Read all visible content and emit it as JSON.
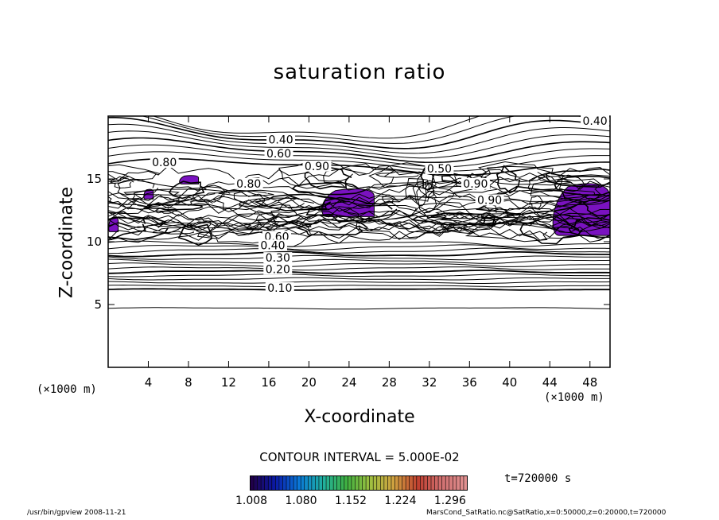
{
  "chart_data": {
    "type": "heatmap",
    "title": "saturation ratio",
    "xlabel": "X-coordinate",
    "ylabel": "Z-coordinate",
    "x_unit_label": "(×1000 m)",
    "y_unit_label": "(×1000 m)",
    "xlim": [
      0,
      50
    ],
    "ylim": [
      0,
      20
    ],
    "x_ticks": [
      4,
      8,
      12,
      16,
      20,
      24,
      28,
      32,
      36,
      40,
      44,
      48
    ],
    "y_ticks": [
      5,
      10,
      15
    ],
    "contour_interval_text": "CONTOUR INTERVAL = 5.000E-02",
    "time_text": "t=720000 s",
    "colorbar_ticks": [
      "1.008",
      "1.080",
      "1.152",
      "1.224",
      "1.296"
    ],
    "colorbar_colors": [
      "#20004a",
      "#0a1aa8",
      "#0a7ad8",
      "#20b0a0",
      "#40b040",
      "#a0c040",
      "#d0a040",
      "#c04030",
      "#d07070",
      "#e09090"
    ],
    "shaded_region_color": "#7a12c0",
    "contour_labels": [
      {
        "text": "0.40",
        "x": 48.5,
        "z": 19.5
      },
      {
        "text": "0.40",
        "x": 17.2,
        "z": 18.0
      },
      {
        "text": "0.60",
        "x": 17.0,
        "z": 16.9
      },
      {
        "text": "0.80",
        "x": 5.6,
        "z": 16.2
      },
      {
        "text": "0.90",
        "x": 20.8,
        "z": 15.9
      },
      {
        "text": "0.50",
        "x": 33.0,
        "z": 15.7
      },
      {
        "text": "0.90",
        "x": 36.6,
        "z": 14.5
      },
      {
        "text": "0.90",
        "x": 38.0,
        "z": 13.2
      },
      {
        "text": "0.80",
        "x": 14.0,
        "z": 14.5
      },
      {
        "text": "0.60",
        "x": 16.8,
        "z": 10.3
      },
      {
        "text": "0.40",
        "x": 16.4,
        "z": 9.6
      },
      {
        "text": "0.30",
        "x": 16.9,
        "z": 8.6
      },
      {
        "text": "0.20",
        "x": 16.9,
        "z": 7.7
      },
      {
        "text": "0.10",
        "x": 17.1,
        "z": 6.2
      }
    ],
    "shaded_regions_saturation_gt_1": [
      {
        "x": [
          44,
          50
        ],
        "z": [
          10.5,
          14.8
        ]
      },
      {
        "x": [
          7.0,
          9.0
        ],
        "z": [
          14.6,
          15.3
        ]
      },
      {
        "x": [
          21.0,
          26.5
        ],
        "z": [
          12.0,
          14.3
        ]
      },
      {
        "x": [
          0.0,
          1.0
        ],
        "z": [
          10.8,
          12.0
        ]
      },
      {
        "x": [
          3.5,
          4.5
        ],
        "z": [
          13.4,
          14.2
        ]
      }
    ],
    "grid": false
  },
  "footer": {
    "left": "/usr/bin/gpview   2008-11-21",
    "right": "MarsCond_SatRatio.nc@SatRatio,x=0:50000,z=0:20000,t=720000"
  }
}
